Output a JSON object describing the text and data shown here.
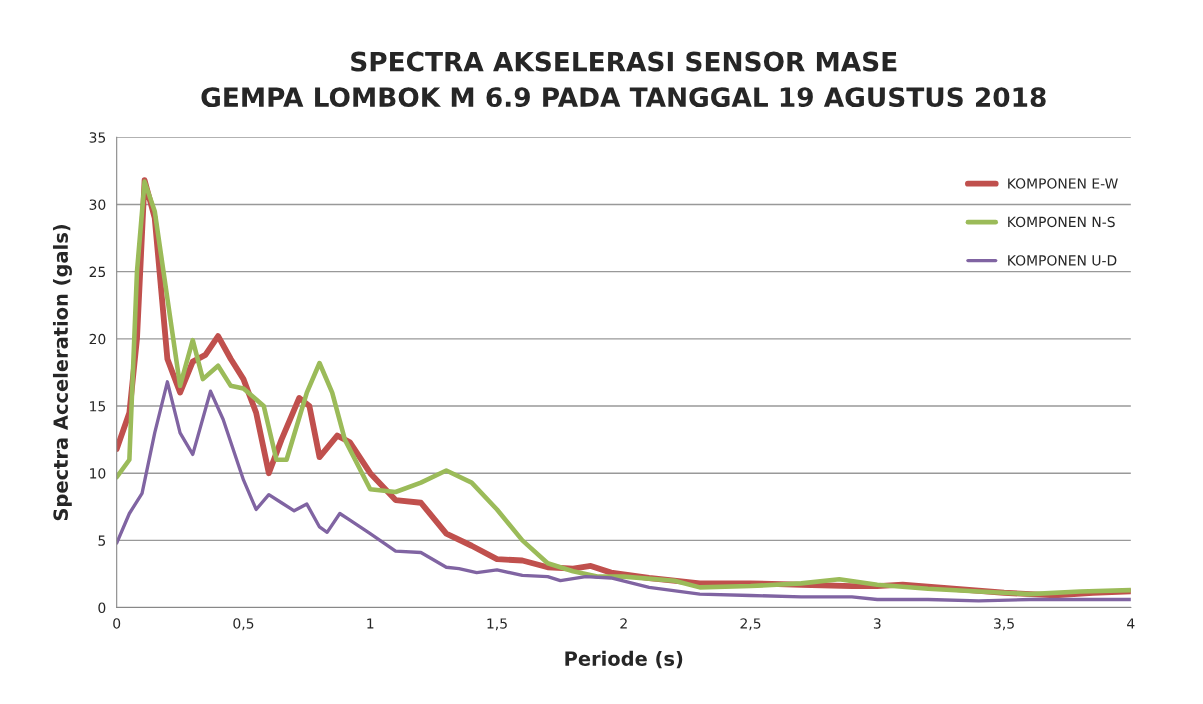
{
  "chart_data": {
    "type": "line",
    "title": "SPECTRA AKSELERASI SENSOR MASE\nGEMPA LOMBOK M 6.9 PADA TANGGAL 19 AGUSTUS 2018",
    "xlabel": "Periode (s)",
    "ylabel": "Spectra Acceleration (gals)",
    "xlim": [
      0,
      4
    ],
    "ylim": [
      0,
      35
    ],
    "xticks": [
      0,
      {
        "value": 0.5,
        "label": "0,5"
      },
      1,
      {
        "value": 1.5,
        "label": "1,5"
      },
      2,
      {
        "value": 2.5,
        "label": "2,5"
      },
      3,
      {
        "value": 3.5,
        "label": "3,5"
      },
      4
    ],
    "yticks": [
      0,
      5,
      10,
      15,
      20,
      25,
      30,
      35
    ],
    "grid": "y",
    "legend": "top right",
    "marker": "none",
    "line_style": "solid",
    "series": [
      {
        "name": "KOMPONEN E-W",
        "color": "#c0504d",
        "x": [
          0,
          0.05,
          0.08,
          0.11,
          0.15,
          0.2,
          0.25,
          0.3,
          0.35,
          0.4,
          0.45,
          0.5,
          0.55,
          0.6,
          0.65,
          0.72,
          0.76,
          0.8,
          0.87,
          0.92,
          1.0,
          1.1,
          1.2,
          1.3,
          1.4,
          1.5,
          1.6,
          1.7,
          1.8,
          1.87,
          1.95,
          2.1,
          2.3,
          2.5,
          2.7,
          2.9,
          3.0,
          3.1,
          3.3,
          3.5,
          3.7,
          3.85,
          4.0
        ],
        "values": [
          11.8,
          14.5,
          20,
          31.8,
          29,
          18.5,
          16,
          18.3,
          18.8,
          20.2,
          18.5,
          17,
          14.5,
          10,
          12.5,
          15.6,
          15,
          11.2,
          12.8,
          12.3,
          10,
          8,
          7.8,
          5.5,
          4.6,
          3.6,
          3.5,
          3,
          2.9,
          3.1,
          2.6,
          2.2,
          1.8,
          1.8,
          1.7,
          1.6,
          1.6,
          1.7,
          1.4,
          1.1,
          0.9,
          1.1,
          1.2
        ]
      },
      {
        "name": "KOMPONEN N-S",
        "color": "#9bbb59",
        "x": [
          0,
          0.05,
          0.08,
          0.11,
          0.15,
          0.2,
          0.25,
          0.3,
          0.34,
          0.4,
          0.45,
          0.5,
          0.58,
          0.63,
          0.67,
          0.75,
          0.8,
          0.85,
          0.9,
          1.0,
          1.1,
          1.2,
          1.3,
          1.4,
          1.5,
          1.6,
          1.7,
          1.8,
          1.9,
          2.0,
          2.2,
          2.3,
          2.5,
          2.7,
          2.85,
          3.0,
          3.2,
          3.4,
          3.6,
          3.8,
          4.0
        ],
        "values": [
          9.7,
          11,
          25,
          31.7,
          29.5,
          23,
          16.5,
          19.9,
          17,
          18,
          16.5,
          16.3,
          15,
          11,
          11,
          16,
          18.2,
          16,
          12.5,
          8.8,
          8.6,
          9.3,
          10.2,
          9.3,
          7.3,
          5,
          3.3,
          2.7,
          2.3,
          2.3,
          2,
          1.5,
          1.6,
          1.8,
          2.1,
          1.7,
          1.4,
          1.2,
          1.0,
          1.2,
          1.3
        ]
      },
      {
        "name": "KOMPONEN U-D",
        "color": "#8064a2",
        "x": [
          0,
          0.05,
          0.1,
          0.15,
          0.2,
          0.25,
          0.3,
          0.37,
          0.42,
          0.5,
          0.55,
          0.6,
          0.65,
          0.7,
          0.75,
          0.8,
          0.83,
          0.88,
          0.92,
          1.0,
          1.1,
          1.2,
          1.3,
          1.35,
          1.42,
          1.5,
          1.6,
          1.7,
          1.75,
          1.85,
          1.95,
          2.1,
          2.3,
          2.5,
          2.7,
          2.9,
          3.0,
          3.2,
          3.4,
          3.6,
          3.8,
          4.0
        ],
        "values": [
          4.8,
          7,
          8.5,
          13,
          16.8,
          13,
          11.4,
          16.1,
          14,
          9.5,
          7.3,
          8.4,
          7.8,
          7.2,
          7.7,
          6,
          5.6,
          7,
          6.5,
          5.5,
          4.2,
          4.1,
          3,
          2.9,
          2.6,
          2.8,
          2.4,
          2.3,
          2.0,
          2.3,
          2.2,
          1.5,
          1.0,
          0.9,
          0.8,
          0.8,
          0.6,
          0.6,
          0.5,
          0.6,
          0.6,
          0.6
        ]
      }
    ]
  }
}
